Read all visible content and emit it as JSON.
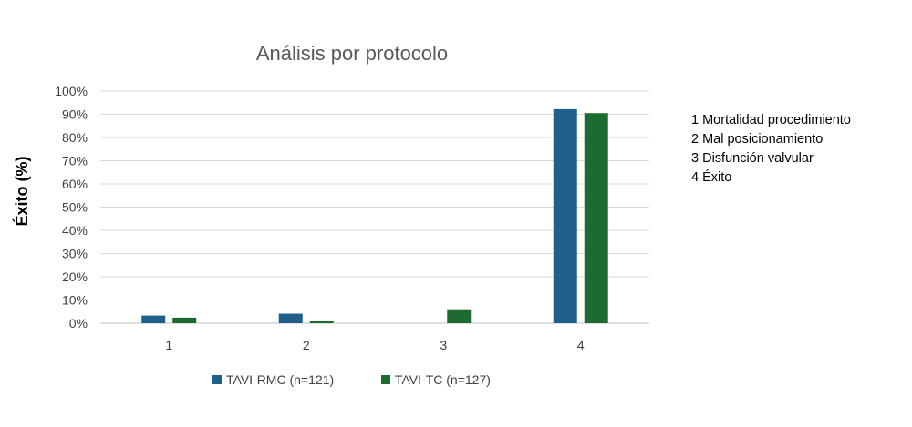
{
  "chart_data": {
    "type": "bar",
    "title": "Análisis por protocolo",
    "ylabel": "Éxito (%)",
    "xlabel": "",
    "categories": [
      "1",
      "2",
      "3",
      "4"
    ],
    "ylim": [
      0,
      100
    ],
    "yticks": [
      "0%",
      "10%",
      "20%",
      "30%",
      "40%",
      "50%",
      "60%",
      "70%",
      "80%",
      "90%",
      "100%"
    ],
    "grid": true,
    "legend_position": "bottom",
    "series": [
      {
        "name": "TAVI-RMC (n=121)",
        "color": "#1f5f8b",
        "values": [
          3.3,
          4.1,
          0,
          92.2
        ]
      },
      {
        "name": "TAVI-TC (n=127)",
        "color": "#1e6b32",
        "values": [
          2.4,
          0.8,
          6.0,
          90.5
        ]
      }
    ]
  },
  "category_notes": [
    "1 Mortalidad procedimiento",
    "2 Mal posicionamiento",
    "3 Disfunción valvular",
    "4 Éxito"
  ]
}
